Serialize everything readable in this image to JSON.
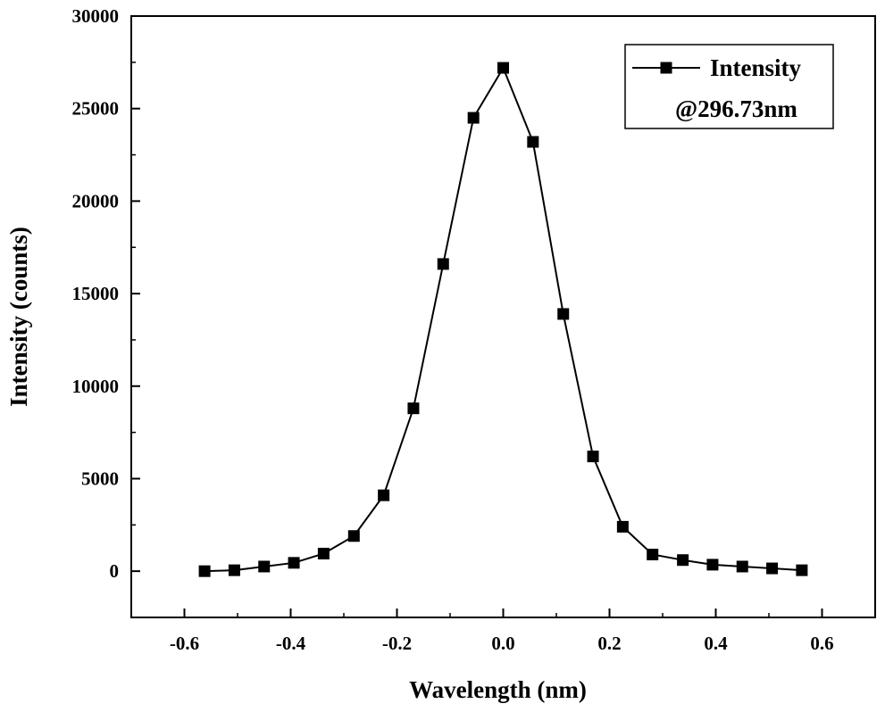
{
  "chart_data": {
    "type": "line",
    "title": "",
    "xlabel": "Wavelength (nm)",
    "ylabel": "Intensity (counts)",
    "xlim": [
      -0.7,
      0.7
    ],
    "ylim": [
      -2500,
      30000
    ],
    "xticks": [
      -0.6,
      -0.4,
      -0.2,
      0.0,
      0.2,
      0.4,
      0.6
    ],
    "xtick_labels": [
      "-0.6",
      "-0.4",
      "-0.2",
      "0.0",
      "0.2",
      "0.4",
      "0.6"
    ],
    "yticks": [
      0,
      5000,
      10000,
      15000,
      20000,
      25000,
      30000
    ],
    "ytick_labels": [
      "0",
      "5000",
      "10000",
      "15000",
      "20000",
      "25000",
      "30000"
    ],
    "grid": false,
    "legend": {
      "position": "top-right",
      "entries": [
        {
          "label_line1": "Intensity",
          "label_line2": "@296.73nm"
        }
      ]
    },
    "series": [
      {
        "name": "Intensity @296.73nm",
        "color": "#000000",
        "marker": "square",
        "x": [
          -0.562,
          -0.506,
          -0.45,
          -0.394,
          -0.338,
          -0.281,
          -0.225,
          -0.169,
          -0.113,
          -0.056,
          0.0,
          0.056,
          0.113,
          0.169,
          0.225,
          0.281,
          0.338,
          0.394,
          0.45,
          0.506,
          0.562
        ],
        "y": [
          0,
          50,
          250,
          450,
          950,
          1900,
          4100,
          8800,
          16600,
          24500,
          27200,
          23200,
          13900,
          6200,
          2400,
          900,
          600,
          350,
          250,
          150,
          50
        ]
      }
    ]
  }
}
